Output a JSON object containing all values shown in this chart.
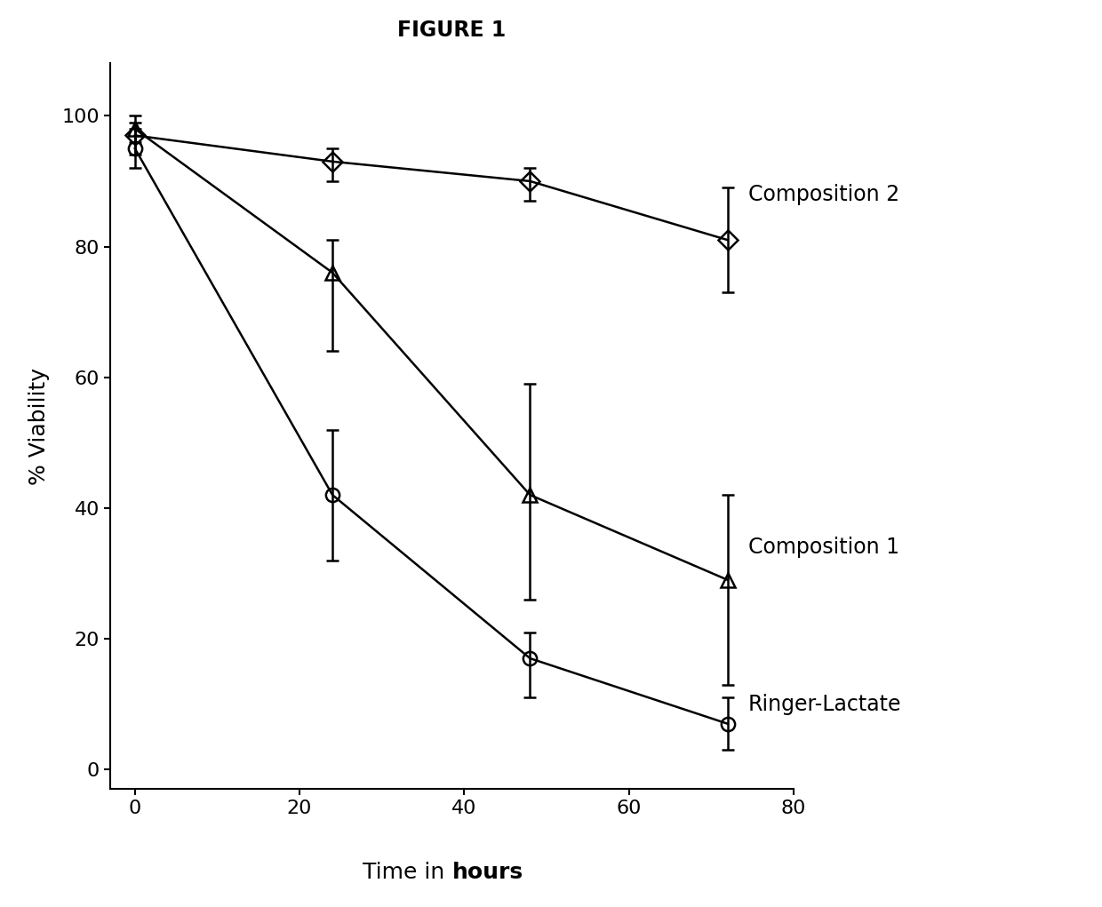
{
  "title": "FIGURE 1",
  "xlabel": "Time in hours",
  "ylabel": "% Viability",
  "xlim": [
    -3,
    80
  ],
  "ylim": [
    -3,
    108
  ],
  "xticks": [
    0,
    20,
    40,
    60,
    80
  ],
  "yticks": [
    0,
    20,
    40,
    60,
    80,
    100
  ],
  "series": [
    {
      "label": "Composition 2",
      "x": [
        0,
        24,
        48,
        72
      ],
      "y": [
        97,
        93,
        90,
        81
      ],
      "yerr_low": [
        3,
        3,
        3,
        8
      ],
      "yerr_high": [
        2,
        2,
        2,
        8
      ],
      "marker": "D",
      "markersize": 11,
      "linewidth": 1.8,
      "color": "#000000",
      "annotation": "Composition 2",
      "ann_x": 73.5,
      "ann_y": 88
    },
    {
      "label": "Composition 1",
      "x": [
        0,
        24,
        48,
        72
      ],
      "y": [
        98,
        76,
        42,
        29
      ],
      "yerr_low": [
        2,
        12,
        16,
        16
      ],
      "yerr_high": [
        2,
        5,
        17,
        13
      ],
      "marker": "^",
      "markersize": 12,
      "linewidth": 1.8,
      "color": "#000000",
      "annotation": "Composition 1",
      "ann_x": 73.5,
      "ann_y": 34
    },
    {
      "label": "Ringer-Lactate",
      "x": [
        0,
        24,
        48,
        72
      ],
      "y": [
        95,
        42,
        17,
        7
      ],
      "yerr_low": [
        3,
        10,
        6,
        4
      ],
      "yerr_high": [
        3,
        10,
        4,
        4
      ],
      "marker": "o",
      "markersize": 11,
      "linewidth": 1.8,
      "color": "#000000",
      "annotation": "Ringer-Lactate",
      "ann_x": 73.5,
      "ann_y": 10
    }
  ],
  "background_color": "#ffffff",
  "title_fontsize": 17,
  "label_fontsize": 18,
  "tick_fontsize": 16,
  "annotation_fontsize": 17
}
